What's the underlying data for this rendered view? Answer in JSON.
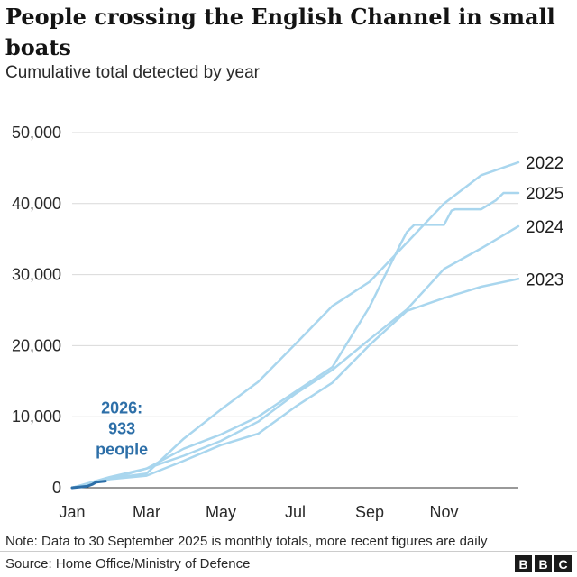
{
  "title": "People crossing the English Channel in small boats",
  "subtitle": "Cumulative total detected by year",
  "note": "Note: Data to 30 September 2025 is monthly totals, more recent figures are daily",
  "source": "Source: Home Office/Ministry of Defence",
  "logo": [
    "B",
    "B",
    "C"
  ],
  "colors": {
    "past_years": "#a9d6ee",
    "current_year": "#2d6fa8",
    "grid": "#d9d9d9"
  },
  "chart_data": {
    "type": "line",
    "title": "People crossing the English Channel in small boats",
    "subtitle": "Cumulative total detected by year",
    "x_unit": "month",
    "xlim": [
      0,
      12
    ],
    "ylim": [
      0,
      50000
    ],
    "yticks": [
      0,
      10000,
      20000,
      30000,
      40000,
      50000
    ],
    "ytick_labels": [
      "0",
      "10,000",
      "20,000",
      "30,000",
      "40,000",
      "50,000"
    ],
    "xticks": [
      0,
      2,
      4,
      6,
      8,
      10
    ],
    "xtick_labels": [
      "Jan",
      "Mar",
      "May",
      "Jul",
      "Sep",
      "Nov"
    ],
    "grid": "horizontal",
    "series": [
      {
        "name": "2022",
        "x": [
          0,
          1,
          2,
          3,
          4,
          5,
          6,
          7,
          8,
          9,
          10,
          11,
          12
        ],
        "y": [
          0,
          1300,
          2000,
          6900,
          11000,
          14900,
          20200,
          25600,
          29000,
          34500,
          40000,
          44000,
          45800
        ]
      },
      {
        "name": "2023",
        "x": [
          0,
          1,
          2,
          3,
          4,
          5,
          6,
          7,
          8,
          9,
          10,
          11,
          12
        ],
        "y": [
          0,
          1200,
          1700,
          3800,
          6000,
          7600,
          11400,
          14800,
          20100,
          24900,
          26700,
          28300,
          29400
        ]
      },
      {
        "name": "2024",
        "x": [
          0,
          1,
          2,
          3,
          4,
          5,
          6,
          7,
          8,
          9,
          10,
          11,
          12
        ],
        "y": [
          0,
          1500,
          2700,
          4500,
          6600,
          9300,
          13200,
          16600,
          20900,
          25100,
          30800,
          33700,
          36800
        ]
      },
      {
        "name": "2025",
        "x": [
          0,
          1,
          2,
          3,
          4,
          5,
          6,
          7,
          8,
          8.85,
          9,
          9.2,
          10,
          10.2,
          10.3,
          11,
          11.4,
          11.6,
          12
        ],
        "y": [
          0,
          1200,
          2700,
          5500,
          7500,
          10000,
          13500,
          17000,
          25500,
          34500,
          36000,
          37000,
          37000,
          39000,
          39200,
          39200,
          40500,
          41500,
          41500
        ]
      },
      {
        "name": "2026",
        "x": [
          0,
          0.4,
          0.55,
          0.65,
          0.9
        ],
        "y": [
          0,
          200,
          500,
          800,
          933
        ]
      }
    ],
    "annotations": [
      {
        "text": [
          "2026:",
          "933",
          "people"
        ],
        "series": "2026"
      }
    ]
  }
}
